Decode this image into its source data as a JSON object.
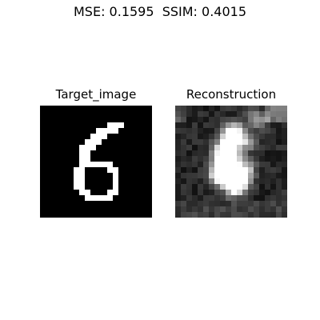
{
  "figure": {
    "suptitle": "MSE: 0.1595  SSIM: 0.4015"
  },
  "panels": [
    {
      "title": "Target_image"
    },
    {
      "title": "Reconstruction"
    }
  ],
  "colors": {
    "background": "#ffffff",
    "text": "#000000",
    "image_black": "#000000",
    "image_white": "#ffffff"
  }
}
